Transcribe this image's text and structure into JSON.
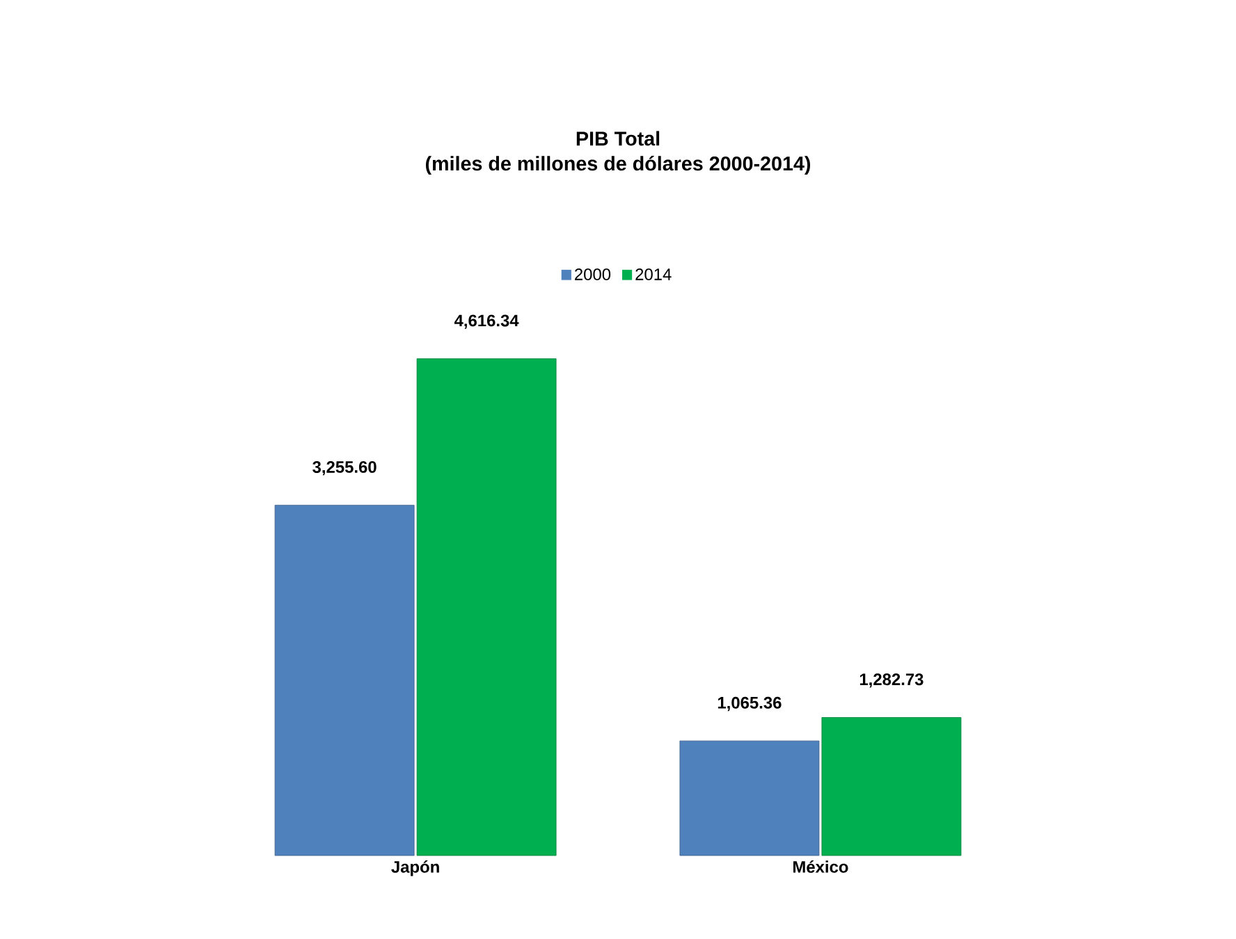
{
  "chart_data": {
    "type": "bar",
    "title": "PIB Total",
    "subtitle": "(miles de millones de dólares 2000-2014)",
    "categories": [
      "Japón",
      "México"
    ],
    "series": [
      {
        "name": "2000",
        "color": "#4f81bd",
        "values": [
          3255.6,
          1065.36
        ],
        "value_labels": [
          "3,255.60",
          "1,065.36"
        ]
      },
      {
        "name": "2014",
        "color": "#00b050",
        "values": [
          4616.34,
          1282.73
        ],
        "value_labels": [
          "4,616.34",
          "1,282.73"
        ]
      }
    ],
    "legend": "top"
  }
}
